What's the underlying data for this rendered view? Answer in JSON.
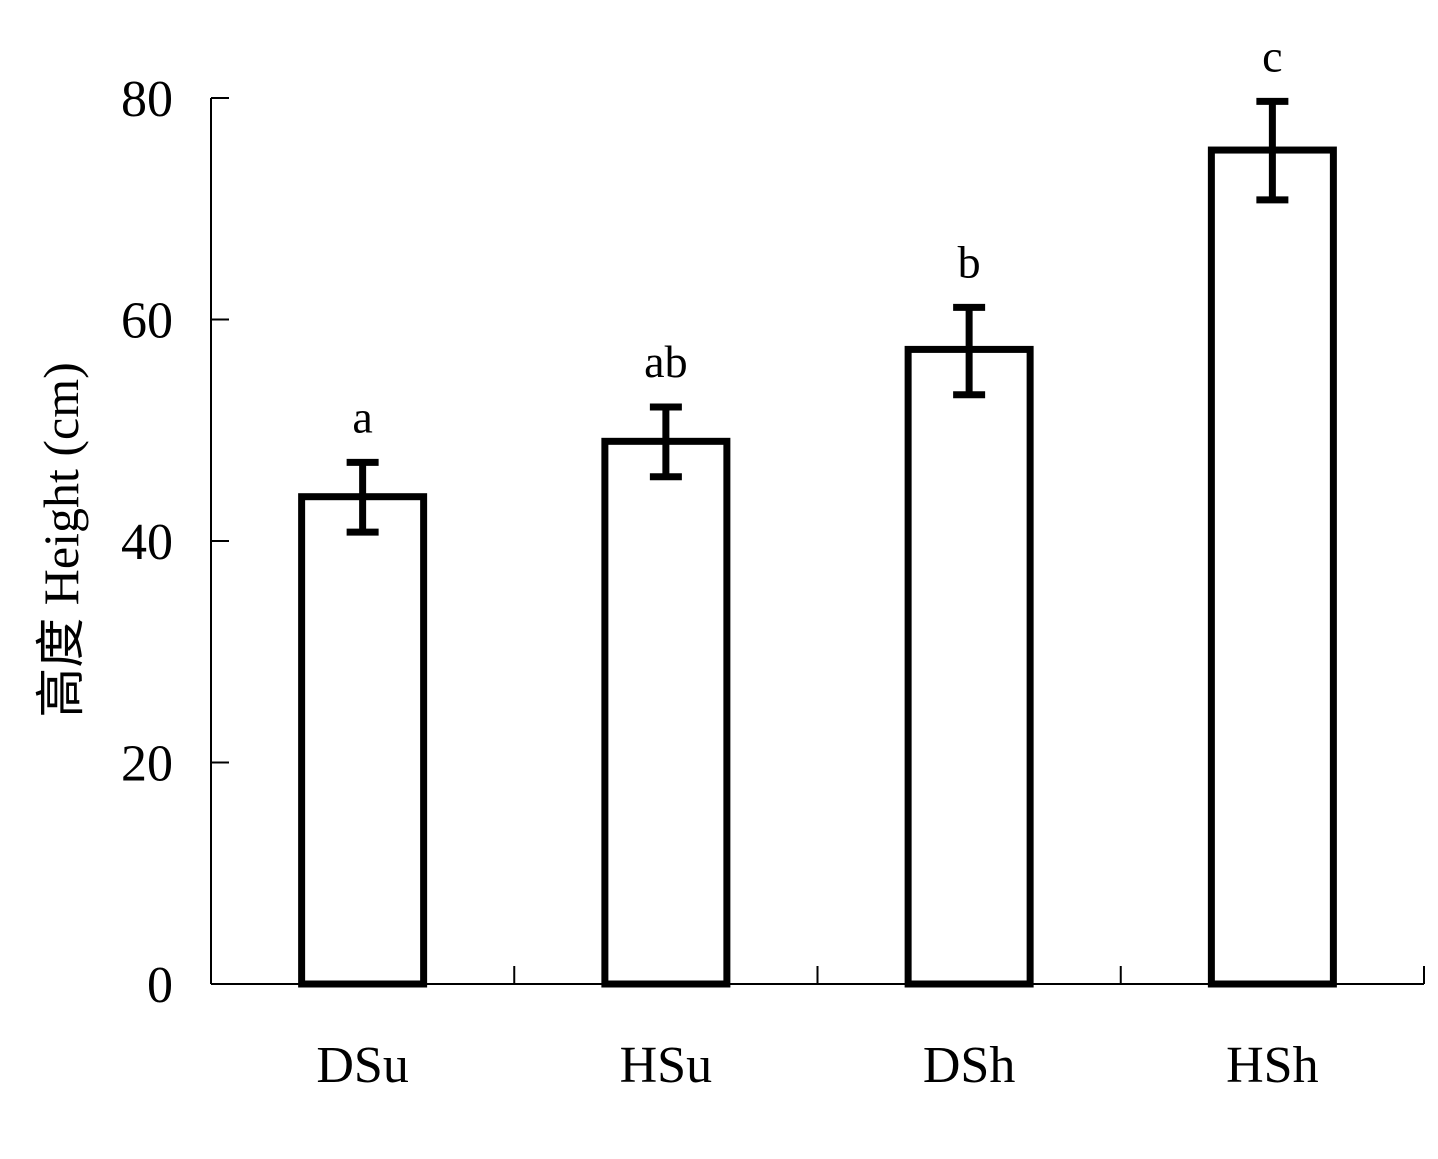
{
  "chart_data": {
    "type": "bar",
    "title": "",
    "xlabel": "",
    "ylabel": "高度 Height (cm)",
    "ylim": [
      0,
      80
    ],
    "yticks": [
      0,
      20,
      40,
      60,
      80
    ],
    "grid": false,
    "legend": "none",
    "categories": [
      "DSu",
      "HSu",
      "DSh",
      "HSh"
    ],
    "values": [
      44,
      49,
      57.3,
      75.3
    ],
    "error_low": [
      40.8,
      45.8,
      53.2,
      70.8
    ],
    "error_high": [
      47.1,
      52.1,
      61.1,
      79.7
    ],
    "significance_labels": [
      "a",
      "ab",
      "b",
      "c"
    ],
    "colors": {
      "bar_fill": "#ffffff",
      "bar_stroke": "#000000",
      "axis": "#000000"
    }
  }
}
